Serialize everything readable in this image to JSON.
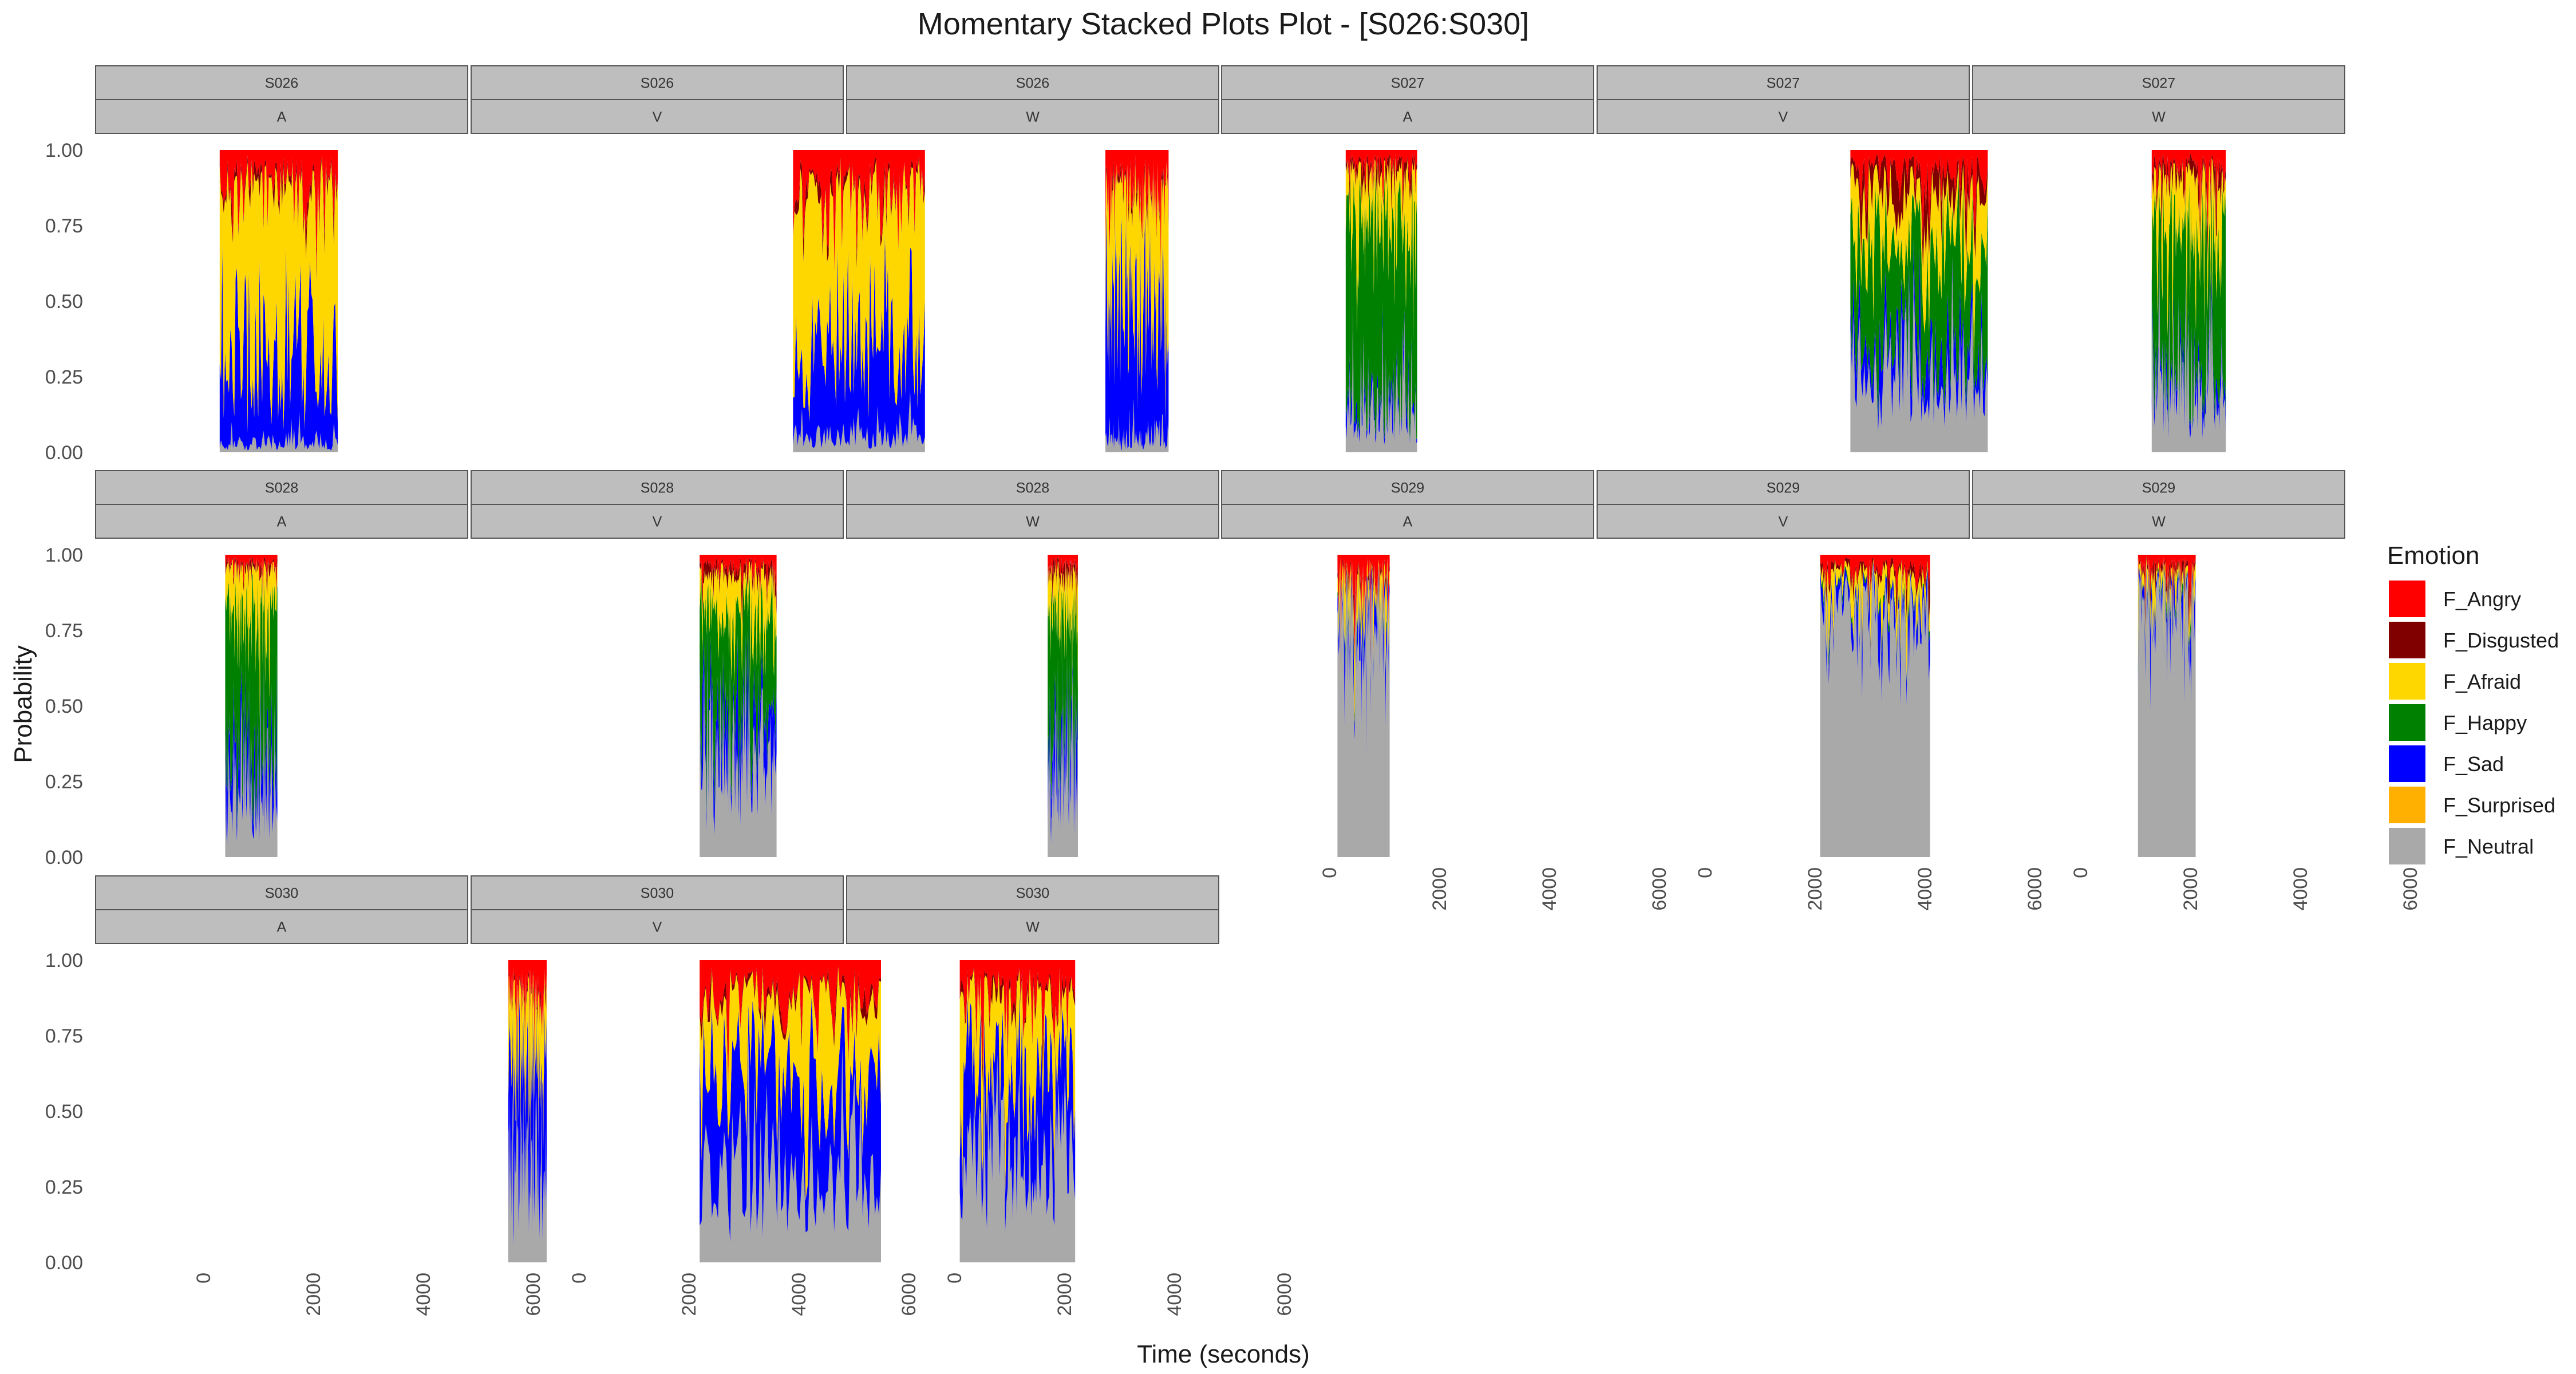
{
  "chart_data": {
    "type": "area",
    "stacked": true,
    "title": "Momentary Stacked Plots Plot - [S026:S030]",
    "xlabel": "Time (seconds)",
    "ylabel": "Probability",
    "xlim": [
      0,
      6500
    ],
    "ylim": [
      0,
      1
    ],
    "x_ticks": [
      0,
      2000,
      4000,
      6000
    ],
    "y_ticks": [
      "0.00",
      "0.25",
      "0.50",
      "0.75",
      "1.00"
    ],
    "legend": {
      "title": "Emotion",
      "placement": "right",
      "items": [
        {
          "name": "F_Angry",
          "color": "#ff0000"
        },
        {
          "name": "F_Disgusted",
          "color": "#800000"
        },
        {
          "name": "F_Afraid",
          "color": "#ffd700"
        },
        {
          "name": "F_Happy",
          "color": "#008000"
        },
        {
          "name": "F_Sad",
          "color": "#0000ff"
        },
        {
          "name": "F_Surprised",
          "color": "#ffb000"
        },
        {
          "name": "F_Neutral",
          "color": "#a9a9a9"
        }
      ]
    },
    "stack_order_bottom_to_top": [
      "F_Neutral",
      "F_Surprised",
      "F_Sad",
      "F_Happy",
      "F_Afraid",
      "F_Disgusted",
      "F_Angry"
    ],
    "panels": [
      {
        "subject": "S026",
        "condition": "A",
        "x_range": [
          300,
          2450
        ],
        "mean": {
          "F_Neutral": 0.03,
          "F_Sad": 0.28,
          "F_Happy": 0.0,
          "F_Afraid": 0.56,
          "F_Disgusted": 0.02,
          "F_Angry": 0.1
        }
      },
      {
        "subject": "S026",
        "condition": "V",
        "x_range": [
          3900,
          6300
        ],
        "mean": {
          "F_Neutral": 0.05,
          "F_Sad": 0.3,
          "F_Happy": 0.0,
          "F_Afraid": 0.52,
          "F_Disgusted": 0.02,
          "F_Angry": 0.11
        }
      },
      {
        "subject": "S026",
        "condition": "W",
        "x_range": [
          2750,
          3900
        ],
        "mean": {
          "F_Neutral": 0.04,
          "F_Sad": 0.4,
          "F_Happy": 0.0,
          "F_Afraid": 0.43,
          "F_Disgusted": 0.02,
          "F_Angry": 0.11
        }
      },
      {
        "subject": "S027",
        "condition": "A",
        "x_range": [
          300,
          1600
        ],
        "mean": {
          "F_Neutral": 0.12,
          "F_Sad": 0.04,
          "F_Happy": 0.6,
          "F_Afraid": 0.16,
          "F_Disgusted": 0.03,
          "F_Angry": 0.05
        }
      },
      {
        "subject": "S027",
        "condition": "V",
        "x_range": [
          2650,
          5150
        ],
        "mean": {
          "F_Neutral": 0.3,
          "F_Sad": 0.1,
          "F_Happy": 0.3,
          "F_Afraid": 0.16,
          "F_Disgusted": 0.07,
          "F_Angry": 0.07
        }
      },
      {
        "subject": "S027",
        "condition": "W",
        "x_range": [
          1300,
          2650
        ],
        "mean": {
          "F_Neutral": 0.2,
          "F_Sad": 0.05,
          "F_Happy": 0.45,
          "F_Afraid": 0.2,
          "F_Disgusted": 0.04,
          "F_Angry": 0.06
        }
      },
      {
        "subject": "S028",
        "condition": "A",
        "x_range": [
          400,
          1350
        ],
        "mean": {
          "F_Neutral": 0.22,
          "F_Sad": 0.12,
          "F_Happy": 0.47,
          "F_Afraid": 0.14,
          "F_Disgusted": 0.02,
          "F_Angry": 0.03
        }
      },
      {
        "subject": "S028",
        "condition": "V",
        "x_range": [
          2200,
          3600
        ],
        "mean": {
          "F_Neutral": 0.32,
          "F_Sad": 0.13,
          "F_Happy": 0.35,
          "F_Afraid": 0.13,
          "F_Disgusted": 0.03,
          "F_Angry": 0.04
        }
      },
      {
        "subject": "S028",
        "condition": "W",
        "x_range": [
          1700,
          2250
        ],
        "mean": {
          "F_Neutral": 0.28,
          "F_Sad": 0.12,
          "F_Happy": 0.42,
          "F_Afraid": 0.12,
          "F_Disgusted": 0.03,
          "F_Angry": 0.03
        }
      },
      {
        "subject": "S029",
        "condition": "A",
        "x_range": [
          150,
          1100
        ],
        "mean": {
          "F_Neutral": 0.78,
          "F_Sad": 0.06,
          "F_Happy": 0.01,
          "F_Afraid": 0.07,
          "F_Disgusted": 0.02,
          "F_Angry": 0.06
        }
      },
      {
        "subject": "S029",
        "condition": "V",
        "x_range": [
          2100,
          4100
        ],
        "mean": {
          "F_Neutral": 0.82,
          "F_Sad": 0.05,
          "F_Happy": 0.01,
          "F_Afraid": 0.06,
          "F_Disgusted": 0.02,
          "F_Angry": 0.04
        }
      },
      {
        "subject": "S029",
        "condition": "W",
        "x_range": [
          1050,
          2100
        ],
        "mean": {
          "F_Neutral": 0.85,
          "F_Sad": 0.04,
          "F_Happy": 0.01,
          "F_Afraid": 0.04,
          "F_Disgusted": 0.02,
          "F_Angry": 0.04
        }
      },
      {
        "subject": "S030",
        "condition": "A",
        "x_range": [
          5550,
          6250
        ],
        "mean": {
          "F_Neutral": 0.3,
          "F_Sad": 0.35,
          "F_Happy": 0.0,
          "F_Afraid": 0.22,
          "F_Disgusted": 0.02,
          "F_Angry": 0.11
        }
      },
      {
        "subject": "S030",
        "condition": "V",
        "x_range": [
          2200,
          5500
        ],
        "mean": {
          "F_Neutral": 0.3,
          "F_Sad": 0.33,
          "F_Happy": 0.0,
          "F_Afraid": 0.25,
          "F_Disgusted": 0.02,
          "F_Angry": 0.1
        }
      },
      {
        "subject": "S030",
        "condition": "W",
        "x_range": [
          100,
          2200
        ],
        "mean": {
          "F_Neutral": 0.4,
          "F_Sad": 0.25,
          "F_Happy": 0.0,
          "F_Afraid": 0.22,
          "F_Disgusted": 0.02,
          "F_Angry": 0.11
        }
      }
    ]
  }
}
